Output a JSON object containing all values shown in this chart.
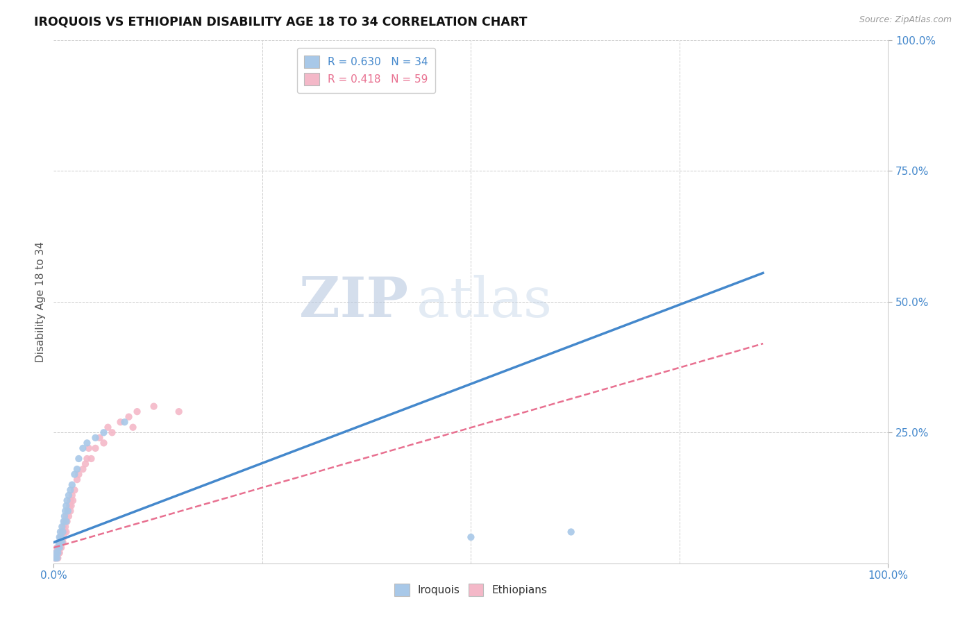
{
  "title": "IROQUOIS VS ETHIOPIAN DISABILITY AGE 18 TO 34 CORRELATION CHART",
  "source_text": "Source: ZipAtlas.com",
  "ylabel": "Disability Age 18 to 34",
  "xlim": [
    0,
    1.0
  ],
  "ylim": [
    0,
    1.0
  ],
  "xticks": [
    0.0,
    0.25,
    0.5,
    0.75,
    1.0
  ],
  "xticklabels": [
    "0.0%",
    "",
    "",
    "",
    "100.0%"
  ],
  "right_yticks": [
    0.25,
    0.5,
    0.75,
    1.0
  ],
  "right_yticklabels": [
    "25.0%",
    "50.0%",
    "75.0%",
    "100.0%"
  ],
  "iroquois_color": "#a8c8e8",
  "ethiopians_color": "#f4b8c8",
  "iroquois_line_color": "#4488cc",
  "ethiopians_line_color": "#e87090",
  "grid_color": "#cccccc",
  "background_color": "#ffffff",
  "watermark_zip_color": "#c8d8f0",
  "watermark_atlas_color": "#c8d8e8",
  "legend_r_iroquois": "R = 0.630",
  "legend_n_iroquois": "N = 34",
  "legend_r_ethiopians": "R = 0.418",
  "legend_n_ethiopians": "N = 59",
  "iroquois_scatter_x": [
    0.002,
    0.003,
    0.004,
    0.005,
    0.005,
    0.006,
    0.007,
    0.007,
    0.008,
    0.008,
    0.009,
    0.01,
    0.01,
    0.011,
    0.012,
    0.013,
    0.014,
    0.015,
    0.015,
    0.016,
    0.017,
    0.018,
    0.02,
    0.022,
    0.025,
    0.028,
    0.03,
    0.035,
    0.04,
    0.05,
    0.06,
    0.085,
    0.5,
    0.62
  ],
  "iroquois_scatter_y": [
    0.01,
    0.02,
    0.01,
    0.02,
    0.03,
    0.04,
    0.03,
    0.05,
    0.04,
    0.06,
    0.05,
    0.04,
    0.07,
    0.06,
    0.08,
    0.09,
    0.1,
    0.08,
    0.11,
    0.12,
    0.1,
    0.13,
    0.14,
    0.15,
    0.17,
    0.18,
    0.2,
    0.22,
    0.23,
    0.24,
    0.25,
    0.27,
    0.05,
    0.06
  ],
  "ethiopians_scatter_x": [
    0.001,
    0.002,
    0.002,
    0.003,
    0.003,
    0.004,
    0.004,
    0.005,
    0.005,
    0.005,
    0.006,
    0.006,
    0.007,
    0.007,
    0.007,
    0.008,
    0.008,
    0.008,
    0.009,
    0.009,
    0.01,
    0.01,
    0.011,
    0.011,
    0.012,
    0.012,
    0.013,
    0.013,
    0.014,
    0.015,
    0.015,
    0.016,
    0.017,
    0.018,
    0.019,
    0.02,
    0.02,
    0.021,
    0.022,
    0.023,
    0.025,
    0.028,
    0.03,
    0.035,
    0.038,
    0.04,
    0.042,
    0.045,
    0.05,
    0.055,
    0.06,
    0.065,
    0.07,
    0.08,
    0.09,
    0.095,
    0.1,
    0.12,
    0.15
  ],
  "ethiopians_scatter_y": [
    0.01,
    0.01,
    0.02,
    0.01,
    0.02,
    0.02,
    0.03,
    0.01,
    0.02,
    0.03,
    0.02,
    0.03,
    0.02,
    0.03,
    0.04,
    0.03,
    0.04,
    0.05,
    0.03,
    0.05,
    0.04,
    0.06,
    0.04,
    0.06,
    0.05,
    0.07,
    0.06,
    0.08,
    0.07,
    0.06,
    0.09,
    0.08,
    0.1,
    0.09,
    0.11,
    0.1,
    0.12,
    0.11,
    0.13,
    0.12,
    0.14,
    0.16,
    0.17,
    0.18,
    0.19,
    0.2,
    0.22,
    0.2,
    0.22,
    0.24,
    0.23,
    0.26,
    0.25,
    0.27,
    0.28,
    0.26,
    0.29,
    0.3,
    0.29
  ],
  "iroquois_line_x": [
    0.0,
    0.85
  ],
  "iroquois_line_y": [
    0.04,
    0.555
  ],
  "ethiopians_line_x": [
    0.0,
    0.85
  ],
  "ethiopians_line_y": [
    0.03,
    0.42
  ]
}
